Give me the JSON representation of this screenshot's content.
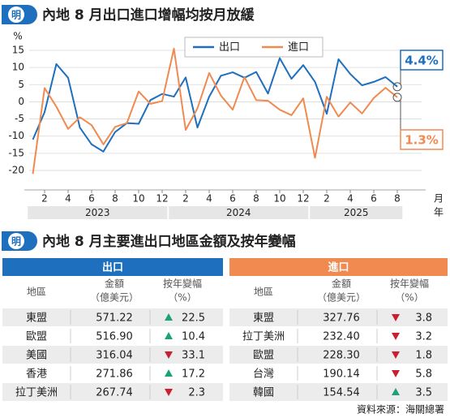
{
  "logo": "明",
  "chart_data": {
    "type": "line",
    "title": "內地 8 月出口進口增幅均按月放緩",
    "y_unit": "%",
    "x_label": "月",
    "group_label": "年",
    "x": [
      "2023-01",
      "2023-02",
      "2023-03",
      "2023-04",
      "2023-05",
      "2023-06",
      "2023-07",
      "2023-08",
      "2023-09",
      "2023-10",
      "2023-11",
      "2023-12",
      "2024-01",
      "2024-02",
      "2024-03",
      "2024-04",
      "2024-05",
      "2024-06",
      "2024-07",
      "2024-08",
      "2024-09",
      "2024-10",
      "2024-11",
      "2024-12",
      "2025-01",
      "2025-02",
      "2025-03",
      "2025-04",
      "2025-05",
      "2025-06",
      "2025-07",
      "2025-08"
    ],
    "x_groups": [
      "2023",
      "2024",
      "2025"
    ],
    "xticks": [
      {
        "value": "2023-02",
        "label": "2"
      },
      {
        "value": "2023-04",
        "label": "4"
      },
      {
        "value": "2023-06",
        "label": "6"
      },
      {
        "value": "2023-08",
        "label": "8"
      },
      {
        "value": "2023-10",
        "label": "10"
      },
      {
        "value": "2023-12",
        "label": "12"
      },
      {
        "value": "2024-02",
        "label": "2"
      },
      {
        "value": "2024-04",
        "label": "4"
      },
      {
        "value": "2024-06",
        "label": "6"
      },
      {
        "value": "2024-08",
        "label": "8"
      },
      {
        "value": "2024-10",
        "label": "10"
      },
      {
        "value": "2024-12",
        "label": "12"
      },
      {
        "value": "2025-02",
        "label": "2"
      },
      {
        "value": "2025-04",
        "label": "4"
      },
      {
        "value": "2025-06",
        "label": "6"
      },
      {
        "value": "2025-08",
        "label": "8"
      }
    ],
    "ylim": [
      -22,
      17.5
    ],
    "yticks": [
      15,
      10,
      5,
      0,
      -5,
      -10,
      -15,
      -20
    ],
    "grid": true,
    "series": [
      {
        "name": "出口",
        "color": "#1f6fbf",
        "values": [
          -11,
          -3,
          11,
          7,
          -7.5,
          -12.4,
          -14.5,
          -8.8,
          -6.2,
          -6.4,
          0.5,
          2.3,
          1.5,
          7.1,
          -7.5,
          1.5,
          7.6,
          8.6,
          7.0,
          8.7,
          2.4,
          12.7,
          6.7,
          10.7,
          5.8,
          -3.5,
          12.4,
          8.1,
          4.8,
          5.8,
          7.2,
          4.4
        ],
        "value_labels": [
          null,
          null,
          null,
          null,
          null,
          null,
          null,
          null,
          null,
          null,
          null,
          null,
          null,
          null,
          null,
          null,
          null,
          null,
          null,
          null,
          null,
          null,
          null,
          null,
          null,
          null,
          null,
          null,
          null,
          null,
          null,
          "4.4%"
        ]
      },
      {
        "name": "進口",
        "color": "#f08a50",
        "values": [
          -21,
          4,
          -1.4,
          -7.9,
          -4.5,
          -6.8,
          -12.4,
          -7.3,
          -6.2,
          3.0,
          -0.6,
          0.2,
          15.5,
          -8.2,
          -1.9,
          8.4,
          1.8,
          -2.3,
          7.2,
          0.5,
          0.3,
          -2.3,
          -3.9,
          1.0,
          -16.3,
          1.5,
          -4.3,
          -0.2,
          -3.4,
          1.1,
          4.1,
          1.3
        ],
        "value_labels": [
          null,
          null,
          null,
          null,
          null,
          null,
          null,
          null,
          null,
          null,
          null,
          null,
          null,
          null,
          null,
          null,
          null,
          null,
          null,
          null,
          null,
          null,
          null,
          null,
          null,
          null,
          null,
          null,
          null,
          null,
          null,
          "1.3%"
        ]
      }
    ]
  },
  "tables": {
    "title": "內地 8 月主要進出口地區金額及按年變幅",
    "columns": [
      [
        "地區"
      ],
      [
        "金額",
        "（億美元）"
      ],
      [
        "按年變幅",
        "（%）"
      ]
    ],
    "sides": [
      {
        "name": "出口",
        "color": "#1f6fbf",
        "rows": [
          {
            "region": "東盟",
            "amount": "571.22",
            "trend": "up",
            "change": "22.5"
          },
          {
            "region": "歐盟",
            "amount": "516.90",
            "trend": "up",
            "change": "10.4"
          },
          {
            "region": "美國",
            "amount": "316.04",
            "trend": "down",
            "change": "33.1"
          },
          {
            "region": "香港",
            "amount": "271.86",
            "trend": "up",
            "change": "17.2"
          },
          {
            "region": "拉丁美洲",
            "amount": "267.74",
            "trend": "down",
            "change": "2.3"
          }
        ]
      },
      {
        "name": "進口",
        "color": "#f08a50",
        "rows": [
          {
            "region": "東盟",
            "amount": "327.76",
            "trend": "down",
            "change": "3.8"
          },
          {
            "region": "拉丁美洲",
            "amount": "232.40",
            "trend": "down",
            "change": "3.2"
          },
          {
            "region": "歐盟",
            "amount": "228.30",
            "trend": "down",
            "change": "1.8"
          },
          {
            "region": "台灣",
            "amount": "190.14",
            "trend": "down",
            "change": "5.8"
          },
          {
            "region": "韓國",
            "amount": "154.54",
            "trend": "up",
            "change": "3.5"
          }
        ]
      }
    ],
    "source": "資料來源：海關總署"
  }
}
